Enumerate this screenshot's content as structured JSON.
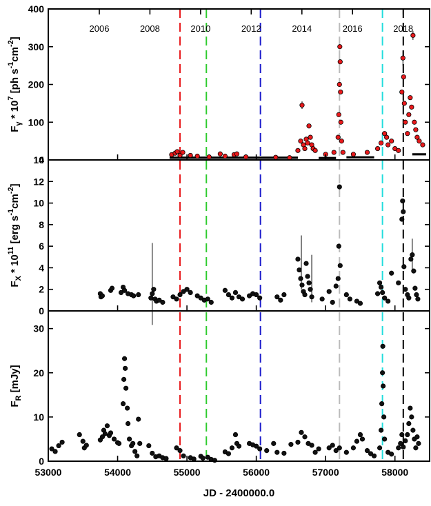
{
  "chart_data": {
    "type": "scatter",
    "x_range": [
      53000,
      58500
    ],
    "xlabel": "JD - 2400000.0",
    "x_ticks": [
      53000,
      54000,
      55000,
      56000,
      57000,
      58000
    ],
    "top_year_axis": {
      "labels": [
        "2006",
        "2008",
        "2010",
        "2012",
        "2014",
        "2016",
        "2018"
      ],
      "jd": [
        53736,
        54466,
        55197,
        55927,
        56658,
        57388,
        58119
      ]
    },
    "vertical_lines": [
      {
        "jd": 54900,
        "color": "#e8191b"
      },
      {
        "jd": 55280,
        "color": "#2ecc2e"
      },
      {
        "jd": 56060,
        "color": "#1c1ccc"
      },
      {
        "jd": 57200,
        "color": "#bbbbbb"
      },
      {
        "jd": 57820,
        "color": "#22dddd"
      },
      {
        "jd": 58120,
        "color": "#000000"
      }
    ],
    "panels": [
      {
        "id": "gamma",
        "ylabel_main": "F",
        "ylabel_sub": "γ",
        "ylabel_rest": " * 10",
        "ylabel_exp": "7",
        "ylabel_units": " [ph s",
        "ylabel_units_exp1": "-1",
        "ylabel_units_mid": "cm",
        "ylabel_units_exp2": "-2",
        "ylabel_units_end": "]",
        "ylim": [
          0,
          400
        ],
        "y_ticks": [
          0,
          100,
          200,
          300,
          400
        ],
        "marker_color": "#e8191b",
        "baseline_segments": [
          [
            54750,
            56600,
            6
          ],
          [
            56900,
            57150,
            5
          ],
          [
            57300,
            57700,
            7
          ],
          [
            58250,
            58450,
            15
          ]
        ],
        "points": [
          [
            54780,
            14
          ],
          [
            54830,
            18
          ],
          [
            54860,
            22
          ],
          [
            54900,
            12
          ],
          [
            54940,
            20
          ],
          [
            55050,
            12
          ],
          [
            55150,
            10
          ],
          [
            55320,
            8
          ],
          [
            55480,
            16
          ],
          [
            55550,
            10
          ],
          [
            55680,
            14
          ],
          [
            55720,
            16
          ],
          [
            55850,
            8
          ],
          [
            56280,
            7
          ],
          [
            56480,
            6
          ],
          [
            56600,
            25
          ],
          [
            56640,
            50
          ],
          [
            56660,
            145
          ],
          [
            56680,
            40
          ],
          [
            56700,
            30
          ],
          [
            56720,
            55
          ],
          [
            56740,
            45
          ],
          [
            56760,
            90
          ],
          [
            56780,
            60
          ],
          [
            56800,
            40
          ],
          [
            56820,
            30
          ],
          [
            56850,
            25
          ],
          [
            57000,
            15
          ],
          [
            57120,
            20
          ],
          [
            57180,
            60
          ],
          [
            57190,
            120
          ],
          [
            57200,
            200
          ],
          [
            57205,
            300
          ],
          [
            57210,
            260
          ],
          [
            57215,
            180
          ],
          [
            57220,
            100
          ],
          [
            57230,
            50
          ],
          [
            57250,
            20
          ],
          [
            57400,
            15
          ],
          [
            57600,
            20
          ],
          [
            57750,
            30
          ],
          [
            57800,
            45
          ],
          [
            57850,
            70
          ],
          [
            57880,
            60
          ],
          [
            57900,
            40
          ],
          [
            57950,
            50
          ],
          [
            58000,
            30
          ],
          [
            58050,
            25
          ],
          [
            58100,
            180
          ],
          [
            58115,
            270
          ],
          [
            58125,
            220
          ],
          [
            58135,
            150
          ],
          [
            58150,
            100
          ],
          [
            58180,
            70
          ],
          [
            58200,
            120
          ],
          [
            58220,
            165
          ],
          [
            58240,
            140
          ],
          [
            58260,
            330
          ],
          [
            58280,
            100
          ],
          [
            58300,
            80
          ],
          [
            58320,
            60
          ],
          [
            58350,
            50
          ],
          [
            58400,
            40
          ]
        ],
        "error_bar_points": [
          [
            56660,
            145,
            10
          ],
          [
            58260,
            330,
            12
          ],
          [
            58115,
            270,
            20
          ]
        ]
      },
      {
        "id": "xray",
        "ylabel_main": "F",
        "ylabel_sub": "X",
        "ylabel_rest": " * 10",
        "ylabel_exp": "11",
        "ylabel_units": " [erg s",
        "ylabel_units_exp1": "-1",
        "ylabel_units_mid": "cm",
        "ylabel_units_exp2": "-2",
        "ylabel_units_end": "]",
        "ylim": [
          0,
          14
        ],
        "y_ticks": [
          0,
          2,
          4,
          6,
          8,
          10,
          12,
          14
        ],
        "marker_color": "#111111",
        "points": [
          [
            53750,
            1.6
          ],
          [
            53760,
            1.3
          ],
          [
            53780,
            1.4
          ],
          [
            53900,
            1.9
          ],
          [
            53920,
            2.1
          ],
          [
            54050,
            1.7
          ],
          [
            54080,
            2.2
          ],
          [
            54100,
            1.9
          ],
          [
            54150,
            1.6
          ],
          [
            54200,
            1.5
          ],
          [
            54230,
            1.4
          ],
          [
            54300,
            1.5
          ],
          [
            54480,
            1.2
          ],
          [
            54500,
            1.6
          ],
          [
            54520,
            2.0
          ],
          [
            54540,
            1.1
          ],
          [
            54560,
            0.9
          ],
          [
            54600,
            1.0
          ],
          [
            54650,
            0.8
          ],
          [
            54800,
            1.3
          ],
          [
            54850,
            1.1
          ],
          [
            54900,
            1.5
          ],
          [
            54950,
            1.8
          ],
          [
            55000,
            2.0
          ],
          [
            55050,
            1.7
          ],
          [
            55150,
            1.4
          ],
          [
            55200,
            1.2
          ],
          [
            55250,
            1.0
          ],
          [
            55300,
            1.1
          ],
          [
            55350,
            0.8
          ],
          [
            55550,
            1.9
          ],
          [
            55600,
            1.5
          ],
          [
            55650,
            1.2
          ],
          [
            55700,
            1.7
          ],
          [
            55750,
            1.3
          ],
          [
            55800,
            1.1
          ],
          [
            55900,
            1.4
          ],
          [
            55950,
            1.6
          ],
          [
            56000,
            1.5
          ],
          [
            56050,
            1.2
          ],
          [
            56300,
            1.3
          ],
          [
            56350,
            1.0
          ],
          [
            56400,
            1.5
          ],
          [
            56600,
            4.8
          ],
          [
            56620,
            3.8
          ],
          [
            56640,
            3.0
          ],
          [
            56660,
            2.4
          ],
          [
            56680,
            1.8
          ],
          [
            56700,
            1.5
          ],
          [
            56720,
            4.4
          ],
          [
            56740,
            3.2
          ],
          [
            56760,
            2.6
          ],
          [
            56780,
            2.0
          ],
          [
            56800,
            1.3
          ],
          [
            56950,
            1.1
          ],
          [
            57050,
            1.8
          ],
          [
            57100,
            0.8
          ],
          [
            57150,
            2.3
          ],
          [
            57180,
            3.0
          ],
          [
            57190,
            6.0
          ],
          [
            57200,
            11.5
          ],
          [
            57210,
            4.2
          ],
          [
            57300,
            1.5
          ],
          [
            57350,
            1.1
          ],
          [
            57450,
            0.9
          ],
          [
            57500,
            0.7
          ],
          [
            57750,
            1.6
          ],
          [
            57780,
            2.6
          ],
          [
            57800,
            2.2
          ],
          [
            57820,
            1.7
          ],
          [
            57850,
            1.2
          ],
          [
            57900,
            0.9
          ],
          [
            57950,
            3.5
          ],
          [
            58050,
            2.6
          ],
          [
            58100,
            8.5
          ],
          [
            58110,
            10.2
          ],
          [
            58120,
            9.2
          ],
          [
            58130,
            4.1
          ],
          [
            58150,
            2.0
          ],
          [
            58180,
            1.5
          ],
          [
            58200,
            1.2
          ],
          [
            58230,
            4.8
          ],
          [
            58250,
            5.2
          ],
          [
            58270,
            3.7
          ],
          [
            58290,
            2.1
          ],
          [
            58310,
            1.5
          ],
          [
            58330,
            1.1
          ]
        ],
        "error_bar_points": [
          [
            54500,
            2.5,
            3.8
          ],
          [
            56650,
            4.5,
            2.5
          ],
          [
            56800,
            3.0,
            2.2
          ],
          [
            58250,
            5.2,
            1.5
          ]
        ]
      },
      {
        "id": "radio",
        "ylabel_main": "F",
        "ylabel_sub": "R",
        "ylabel_rest": " [mJy]",
        "ylim": [
          0,
          34
        ],
        "y_ticks": [
          0,
          10,
          20,
          30
        ],
        "marker_color": "#111111",
        "points": [
          [
            53050,
            2.8
          ],
          [
            53100,
            2.2
          ],
          [
            53150,
            3.5
          ],
          [
            53200,
            4.3
          ],
          [
            53450,
            6.0
          ],
          [
            53500,
            4.5
          ],
          [
            53520,
            3.0
          ],
          [
            53550,
            3.6
          ],
          [
            53750,
            4.8
          ],
          [
            53780,
            5.5
          ],
          [
            53800,
            7.0
          ],
          [
            53820,
            6.2
          ],
          [
            53850,
            8.0
          ],
          [
            53880,
            5.8
          ],
          [
            53900,
            6.4
          ],
          [
            53950,
            5.0
          ],
          [
            54000,
            4.2
          ],
          [
            54020,
            4.0
          ],
          [
            54080,
            13.0
          ],
          [
            54090,
            18.5
          ],
          [
            54100,
            23.2
          ],
          [
            54110,
            21.0
          ],
          [
            54120,
            16.5
          ],
          [
            54140,
            12.0
          ],
          [
            54150,
            8.5
          ],
          [
            54170,
            5.0
          ],
          [
            54200,
            3.5
          ],
          [
            54220,
            4.0
          ],
          [
            54250,
            2.2
          ],
          [
            54280,
            1.2
          ],
          [
            54300,
            9.5
          ],
          [
            54320,
            4.0
          ],
          [
            54450,
            3.5
          ],
          [
            54500,
            1.8
          ],
          [
            54550,
            1.0
          ],
          [
            54600,
            1.2
          ],
          [
            54650,
            0.8
          ],
          [
            54700,
            0.6
          ],
          [
            54850,
            3.0
          ],
          [
            54900,
            2.4
          ],
          [
            54950,
            1.2
          ],
          [
            55050,
            0.8
          ],
          [
            55100,
            0.5
          ],
          [
            55200,
            1.1
          ],
          [
            55230,
            0.7
          ],
          [
            55300,
            0.9
          ],
          [
            55350,
            0.4
          ],
          [
            55400,
            0.2
          ],
          [
            55550,
            2.1
          ],
          [
            55600,
            1.7
          ],
          [
            55650,
            3.0
          ],
          [
            55700,
            6.0
          ],
          [
            55720,
            4.0
          ],
          [
            55750,
            3.4
          ],
          [
            55900,
            4.0
          ],
          [
            55950,
            3.7
          ],
          [
            56000,
            3.4
          ],
          [
            56050,
            2.8
          ],
          [
            56150,
            2.4
          ],
          [
            56250,
            4.0
          ],
          [
            56300,
            2.0
          ],
          [
            56400,
            1.8
          ],
          [
            56500,
            3.8
          ],
          [
            56600,
            4.3
          ],
          [
            56650,
            6.5
          ],
          [
            56700,
            5.5
          ],
          [
            56750,
            4.0
          ],
          [
            56800,
            3.6
          ],
          [
            56850,
            2.0
          ],
          [
            56900,
            2.8
          ],
          [
            57050,
            3.0
          ],
          [
            57100,
            3.6
          ],
          [
            57150,
            2.4
          ],
          [
            57200,
            3.0
          ],
          [
            57300,
            2.0
          ],
          [
            57400,
            3.0
          ],
          [
            57450,
            4.5
          ],
          [
            57500,
            6.0
          ],
          [
            57530,
            5.0
          ],
          [
            57600,
            2.4
          ],
          [
            57650,
            1.7
          ],
          [
            57700,
            1.2
          ],
          [
            57780,
            3.0
          ],
          [
            57800,
            7.0
          ],
          [
            57810,
            13.0
          ],
          [
            57820,
            20.0
          ],
          [
            57825,
            26.0
          ],
          [
            57830,
            17.0
          ],
          [
            57840,
            10.0
          ],
          [
            57850,
            5.0
          ],
          [
            57900,
            2.0
          ],
          [
            57950,
            1.6
          ],
          [
            58050,
            3.0
          ],
          [
            58080,
            4.0
          ],
          [
            58100,
            6.0
          ],
          [
            58120,
            3.2
          ],
          [
            58150,
            4.6
          ],
          [
            58180,
            6.0
          ],
          [
            58200,
            8.5
          ],
          [
            58220,
            12.0
          ],
          [
            58240,
            10.0
          ],
          [
            58260,
            7.0
          ],
          [
            58280,
            5.0
          ],
          [
            58300,
            3.0
          ],
          [
            58320,
            5.5
          ],
          [
            58340,
            4.0
          ]
        ],
        "error_bar_points": []
      }
    ]
  }
}
